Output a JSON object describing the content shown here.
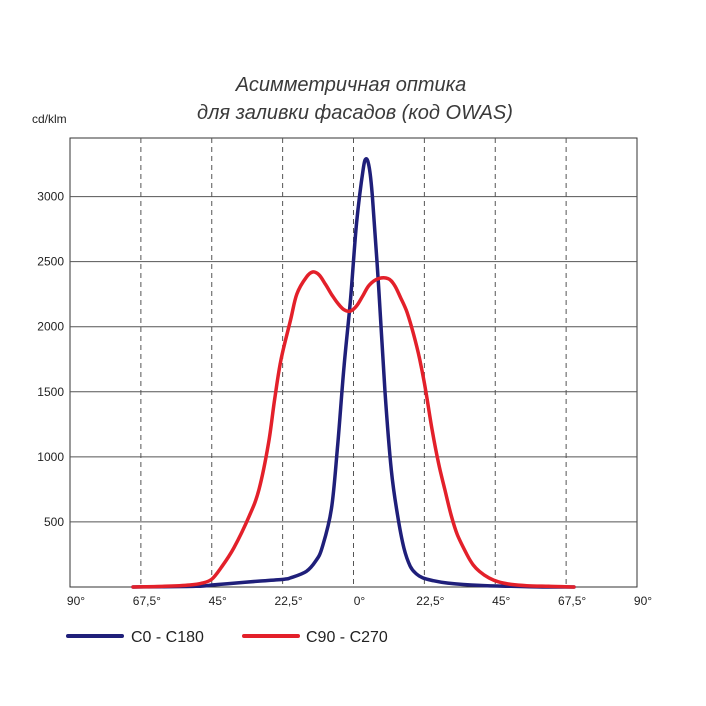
{
  "chart_data": {
    "type": "line",
    "title": "Асимметричная оптика",
    "subtitle": "для заливки фасадов (код OWAS)",
    "ylabel": "cd/klm",
    "xlabel": "",
    "x_tick_labels": [
      "90°",
      "67,5°",
      "45°",
      "22,5°",
      "0°",
      "22,5°",
      "45°",
      "67,5°",
      "90°"
    ],
    "y_tick_labels": [
      "500",
      "1000",
      "1500",
      "2000",
      "2500",
      "3000"
    ],
    "y_ticks": [
      500,
      1000,
      1500,
      2000,
      2500,
      3000
    ],
    "xlim": [
      -90,
      90
    ],
    "ylim": [
      0,
      3450
    ],
    "grid": true,
    "legend_position": "bottom-left",
    "colors": {
      "c0": "#1f1f7a",
      "c90": "#e3202a",
      "grid": "#555555",
      "axis": "#333333"
    },
    "series": [
      {
        "name": "C0 - C180",
        "color": "#1f1f7a",
        "points": [
          [
            -70,
            0
          ],
          [
            -50,
            5
          ],
          [
            -45,
            15
          ],
          [
            -40,
            25
          ],
          [
            -30,
            45
          ],
          [
            -22,
            60
          ],
          [
            -20,
            70
          ],
          [
            -15,
            120
          ],
          [
            -12,
            200
          ],
          [
            -10,
            300
          ],
          [
            -7,
            600
          ],
          [
            -5,
            1100
          ],
          [
            -3,
            1700
          ],
          [
            -1,
            2200
          ],
          [
            1,
            2800
          ],
          [
            3,
            3200
          ],
          [
            4,
            3290
          ],
          [
            5,
            3220
          ],
          [
            6,
            3000
          ],
          [
            8,
            2300
          ],
          [
            10,
            1500
          ],
          [
            12,
            900
          ],
          [
            14,
            550
          ],
          [
            16,
            300
          ],
          [
            18,
            160
          ],
          [
            20,
            100
          ],
          [
            22,
            70
          ],
          [
            25,
            50
          ],
          [
            30,
            30
          ],
          [
            40,
            12
          ],
          [
            50,
            5
          ],
          [
            60,
            0
          ],
          [
            70,
            0
          ]
        ]
      },
      {
        "name": "C90 - C270",
        "color": "#e3202a",
        "points": [
          [
            -70,
            0
          ],
          [
            -60,
            5
          ],
          [
            -52,
            15
          ],
          [
            -48,
            30
          ],
          [
            -45,
            60
          ],
          [
            -42,
            150
          ],
          [
            -38,
            300
          ],
          [
            -33,
            550
          ],
          [
            -30,
            750
          ],
          [
            -27,
            1100
          ],
          [
            -25,
            1450
          ],
          [
            -23,
            1750
          ],
          [
            -20,
            2050
          ],
          [
            -18,
            2250
          ],
          [
            -15,
            2380
          ],
          [
            -13,
            2420
          ],
          [
            -11,
            2400
          ],
          [
            -9,
            2330
          ],
          [
            -7,
            2250
          ],
          [
            -5,
            2180
          ],
          [
            -3,
            2130
          ],
          [
            -1,
            2120
          ],
          [
            1,
            2160
          ],
          [
            3,
            2240
          ],
          [
            5,
            2320
          ],
          [
            8,
            2370
          ],
          [
            11,
            2370
          ],
          [
            13,
            2320
          ],
          [
            15,
            2220
          ],
          [
            17,
            2110
          ],
          [
            19,
            1950
          ],
          [
            21,
            1750
          ],
          [
            23,
            1500
          ],
          [
            25,
            1200
          ],
          [
            27,
            950
          ],
          [
            29,
            750
          ],
          [
            31,
            550
          ],
          [
            33,
            400
          ],
          [
            36,
            250
          ],
          [
            38,
            170
          ],
          [
            40,
            120
          ],
          [
            43,
            70
          ],
          [
            46,
            40
          ],
          [
            50,
            20
          ],
          [
            55,
            10
          ],
          [
            62,
            5
          ],
          [
            70,
            0
          ]
        ]
      }
    ]
  }
}
